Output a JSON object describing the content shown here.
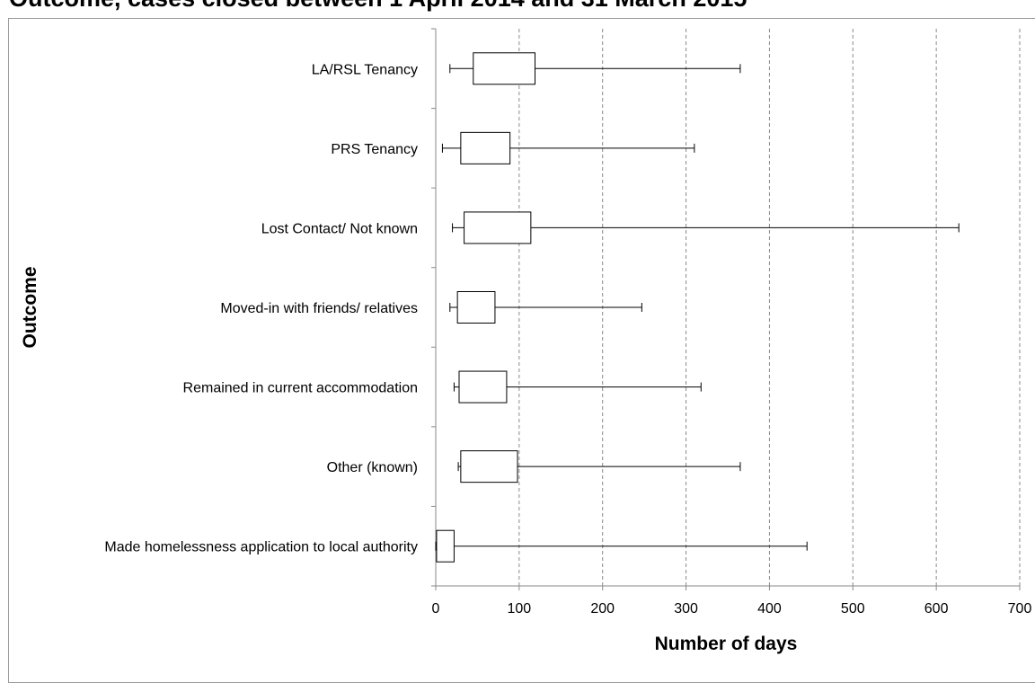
{
  "chart_data": {
    "type": "boxplot",
    "orientation": "horizontal",
    "title": "Outcome, cases closed between 1 April 2014 and 31 March 2015",
    "xlabel": "Number of days",
    "ylabel": "Outcome",
    "xlim": [
      0,
      700
    ],
    "xticks": [
      0,
      100,
      200,
      300,
      400,
      500,
      600,
      700
    ],
    "grid": "vertical dashed",
    "categories": [
      "LA/RSL Tenancy",
      "PRS Tenancy",
      "Lost Contact/ Not known",
      "Moved-in with friends/ relatives",
      "Remained in current accommodation",
      "Other (known)",
      "Made homelessness application to local authority"
    ],
    "boxes": [
      {
        "min": 17,
        "q1": 45,
        "q3": 119,
        "max": 365
      },
      {
        "min": 8,
        "q1": 30,
        "q3": 89,
        "max": 310
      },
      {
        "min": 20,
        "q1": 34,
        "q3": 114,
        "max": 627
      },
      {
        "min": 17,
        "q1": 26,
        "q3": 71,
        "max": 247
      },
      {
        "min": 22,
        "q1": 28,
        "q3": 85,
        "max": 318
      },
      {
        "min": 27,
        "q1": 30,
        "q3": 98,
        "max": 365
      },
      {
        "min": 0,
        "q1": 1,
        "q3": 22,
        "max": 445
      }
    ]
  }
}
